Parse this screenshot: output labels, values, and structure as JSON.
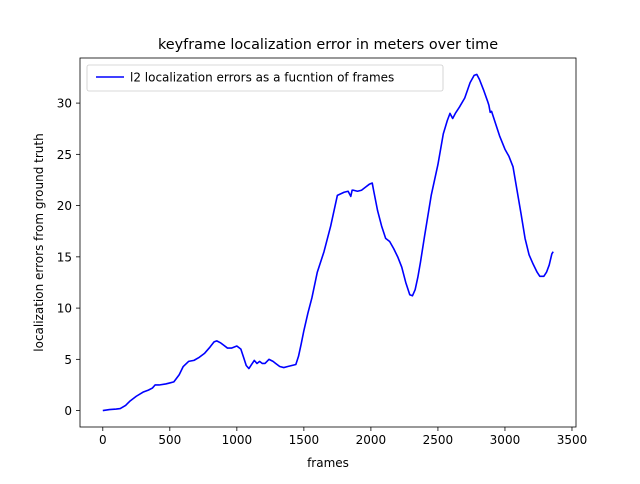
{
  "chart_data": {
    "type": "line",
    "title": "keyframe localization error in meters over time",
    "xlabel": "frames",
    "ylabel": "localization errors from ground truth",
    "xlim": [
      -170,
      3530
    ],
    "ylim": [
      -1.6,
      34.4
    ],
    "xticks": [
      0,
      500,
      1000,
      1500,
      2000,
      2500,
      3000,
      3500
    ],
    "yticks": [
      0,
      5,
      10,
      15,
      20,
      25,
      30
    ],
    "grid": false,
    "legend": {
      "position": "top-left",
      "entries": [
        "l2 localization errors as a fucntion of frames"
      ]
    },
    "series": [
      {
        "name": "l2 localization errors as a fucntion of frames",
        "color": "#0000ff",
        "x": [
          0,
          50,
          100,
          130,
          170,
          200,
          250,
          300,
          340,
          370,
          390,
          420,
          470,
          500,
          530,
          570,
          600,
          640,
          680,
          720,
          760,
          800,
          830,
          850,
          880,
          900,
          930,
          960,
          1000,
          1030,
          1050,
          1070,
          1090,
          1110,
          1130,
          1150,
          1170,
          1190,
          1210,
          1240,
          1270,
          1290,
          1320,
          1350,
          1380,
          1410,
          1440,
          1460,
          1480,
          1500,
          1530,
          1560,
          1600,
          1650,
          1700,
          1750,
          1800,
          1830,
          1850,
          1860,
          1870,
          1900,
          1930,
          1960,
          1990,
          2010,
          2020,
          2050,
          2080,
          2110,
          2140,
          2170,
          2200,
          2230,
          2260,
          2290,
          2310,
          2330,
          2350,
          2370,
          2400,
          2450,
          2500,
          2540,
          2570,
          2590,
          2610,
          2630,
          2660,
          2700,
          2740,
          2770,
          2790,
          2810,
          2840,
          2870,
          2880,
          2890,
          2900,
          2930,
          2960,
          3000,
          3030,
          3060,
          3090,
          3120,
          3150,
          3180,
          3210,
          3240,
          3260,
          3290,
          3310,
          3330,
          3350,
          3360
        ],
        "y": [
          0.0,
          0.1,
          0.15,
          0.2,
          0.5,
          0.9,
          1.4,
          1.8,
          2.0,
          2.2,
          2.5,
          2.5,
          2.6,
          2.7,
          2.8,
          3.5,
          4.3,
          4.8,
          4.9,
          5.2,
          5.6,
          6.2,
          6.7,
          6.8,
          6.6,
          6.4,
          6.1,
          6.1,
          6.3,
          6.0,
          5.2,
          4.4,
          4.1,
          4.5,
          4.9,
          4.6,
          4.8,
          4.6,
          4.6,
          5.0,
          4.8,
          4.6,
          4.3,
          4.2,
          4.3,
          4.4,
          4.5,
          5.3,
          6.5,
          7.8,
          9.5,
          11.0,
          13.5,
          15.5,
          18.0,
          21.0,
          21.3,
          21.4,
          20.9,
          21.5,
          21.5,
          21.4,
          21.5,
          21.8,
          22.1,
          22.2,
          21.5,
          19.5,
          18.0,
          16.8,
          16.5,
          15.8,
          15.0,
          14.0,
          12.5,
          11.3,
          11.2,
          11.8,
          13.0,
          14.5,
          17.0,
          21.0,
          24.0,
          27.0,
          28.3,
          29.0,
          28.5,
          29.0,
          29.6,
          30.5,
          32.0,
          32.7,
          32.8,
          32.3,
          31.3,
          30.2,
          29.8,
          29.1,
          29.2,
          28.0,
          26.8,
          25.5,
          24.8,
          23.8,
          21.5,
          19.2,
          16.8,
          15.2,
          14.3,
          13.5,
          13.1,
          13.1,
          13.5,
          14.2,
          15.3,
          15.5
        ]
      }
    ]
  }
}
